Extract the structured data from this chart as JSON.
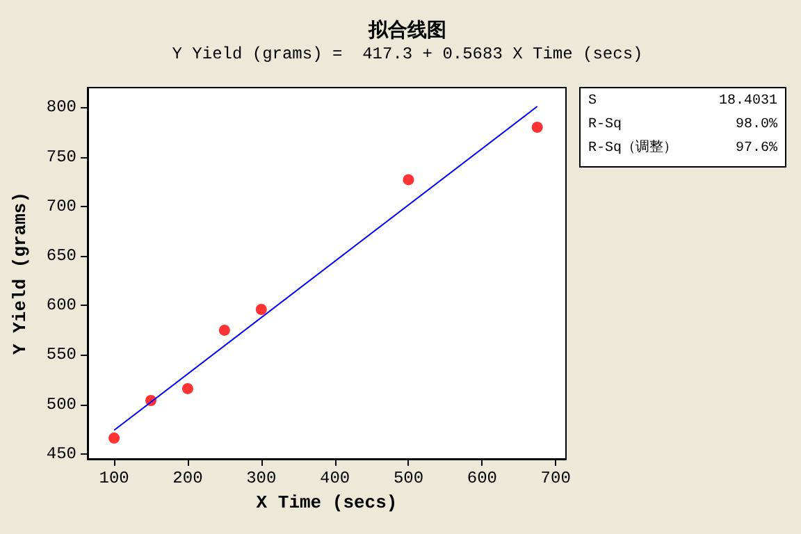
{
  "chart_data": {
    "type": "scatter",
    "title": "拟合线图",
    "subtitle": "Y Yield (grams) =  417.3 + 0.5683 X Time (secs)",
    "xlabel": "X Time (secs)",
    "ylabel": "Y Yield (grams)",
    "series": [
      {
        "color": "#ff0000",
        "marker": "circle",
        "x": [
          100,
          150,
          200,
          250,
          300,
          500,
          675
        ],
        "values": [
          466,
          504,
          516,
          575,
          596,
          727,
          780
        ]
      },
      {
        "type": "line",
        "color": "#0000ff",
        "marker": "none",
        "x": [
          100,
          675
        ],
        "values": [
          474,
          801
        ]
      }
    ],
    "xlim": [
      64,
      714
    ],
    "xticks": [
      100,
      200,
      300,
      400,
      500,
      600,
      700
    ],
    "ylim": [
      445,
      820
    ],
    "yticks": [
      450,
      500,
      550,
      600,
      650,
      700,
      750,
      800
    ],
    "grid": false,
    "line_style": "solid",
    "annotations": [
      "S 18.4031",
      "R-Sq 98.0%",
      "R-Sq（调整） 97.6%"
    ]
  }
}
